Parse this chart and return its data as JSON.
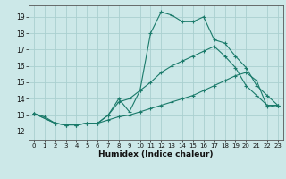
{
  "xlabel": "Humidex (Indice chaleur)",
  "bg_color": "#cce8e8",
  "grid_color": "#aad0d0",
  "line_color": "#1a7a6a",
  "xlim": [
    -0.5,
    23.5
  ],
  "ylim": [
    11.5,
    19.7
  ],
  "xticks": [
    0,
    1,
    2,
    3,
    4,
    5,
    6,
    7,
    8,
    9,
    10,
    11,
    12,
    13,
    14,
    15,
    16,
    17,
    18,
    19,
    20,
    21,
    22,
    23
  ],
  "yticks": [
    12,
    13,
    14,
    15,
    16,
    17,
    18,
    19
  ],
  "line1_x": [
    0,
    1,
    2,
    3,
    4,
    5,
    6,
    7,
    8,
    9,
    10,
    11,
    12,
    13,
    14,
    15,
    16,
    17,
    18,
    19,
    20,
    21,
    22,
    23
  ],
  "line1_y": [
    13.1,
    12.9,
    12.5,
    12.4,
    12.4,
    12.5,
    12.5,
    13.0,
    14.0,
    13.2,
    14.5,
    18.0,
    19.3,
    19.1,
    18.7,
    18.7,
    19.0,
    17.6,
    17.4,
    16.6,
    15.9,
    14.8,
    14.2,
    13.6
  ],
  "line2_x": [
    0,
    2,
    3,
    4,
    5,
    6,
    7,
    8,
    9,
    10,
    11,
    12,
    13,
    14,
    15,
    16,
    17,
    18,
    19,
    20,
    21,
    22,
    23
  ],
  "line2_y": [
    13.1,
    12.5,
    12.4,
    12.4,
    12.5,
    12.5,
    13.0,
    13.8,
    14.0,
    14.5,
    15.0,
    15.6,
    16.0,
    16.3,
    16.6,
    16.9,
    17.2,
    16.6,
    15.9,
    14.8,
    14.2,
    13.6,
    13.6
  ],
  "line3_x": [
    0,
    2,
    3,
    4,
    5,
    6,
    7,
    8,
    9,
    10,
    11,
    12,
    13,
    14,
    15,
    16,
    17,
    18,
    19,
    20,
    21,
    22,
    23
  ],
  "line3_y": [
    13.1,
    12.5,
    12.4,
    12.4,
    12.5,
    12.5,
    12.7,
    12.9,
    13.0,
    13.2,
    13.4,
    13.6,
    13.8,
    14.0,
    14.2,
    14.5,
    14.8,
    15.1,
    15.4,
    15.6,
    15.1,
    13.5,
    13.6
  ]
}
